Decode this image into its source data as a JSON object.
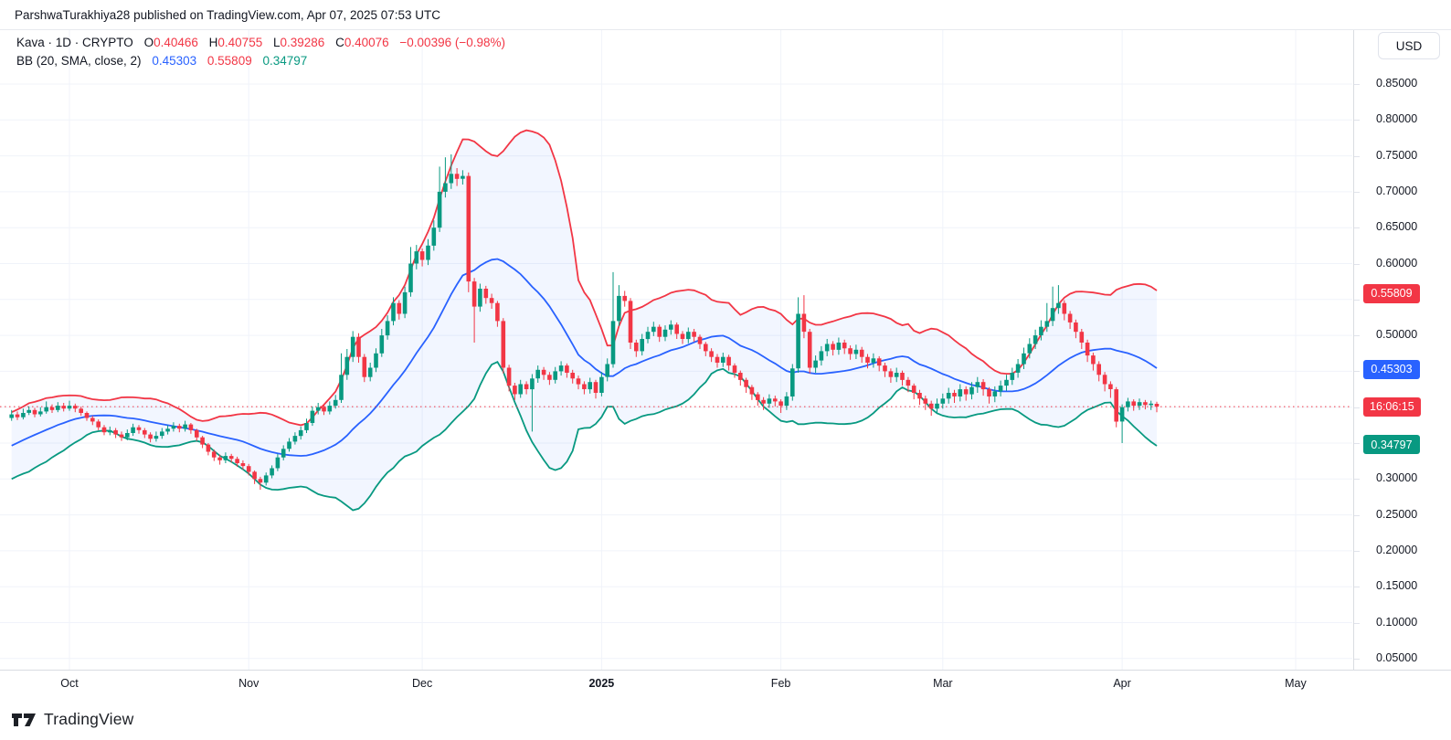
{
  "header": {
    "text": "ParshwaTurakhiya28 published on TradingView.com, Apr 07, 2025 07:53 UTC"
  },
  "legend": {
    "line1": {
      "title": "Kava · 1D · CRYPTO",
      "o_label": "O",
      "o": "0.40466",
      "h_label": "H",
      "h": "0.40755",
      "l_label": "L",
      "l": "0.39286",
      "c_label": "C",
      "c": "0.40076",
      "change": "−0.00396 (−0.98%)"
    },
    "line2": {
      "name": "BB (20, SMA, close, 2)",
      "basis": "0.45303",
      "upper": "0.55809",
      "lower": "0.34797"
    }
  },
  "price_scale": {
    "currency": "USD",
    "ticks": [
      0.85,
      0.8,
      0.75,
      0.7,
      0.65,
      0.6,
      0.55,
      0.5,
      0.45,
      0.4,
      0.35,
      0.3,
      0.25,
      0.2,
      0.15,
      0.1,
      0.05
    ],
    "hidden_ticks_by_badges": [
      0.55,
      0.45,
      0.4,
      0.35
    ],
    "labels": [
      {
        "text": "0.55809",
        "color": "#F23645",
        "price": 0.55809,
        "name": "bb-upper-label"
      },
      {
        "text": "0.45303",
        "color": "#2962FF",
        "price": 0.45303,
        "name": "bb-basis-label"
      },
      {
        "text": "16:06:15",
        "color": "#F23645",
        "price": 0.40076,
        "name": "countdown-label"
      },
      {
        "text": "0.34797",
        "color": "#089981",
        "price": 0.34797,
        "name": "bb-lower-label"
      }
    ],
    "current_price": 0.40076
  },
  "time_scale": {
    "ticks": [
      {
        "label": "Oct",
        "day": 10,
        "bold": false
      },
      {
        "label": "Nov",
        "day": 41,
        "bold": false
      },
      {
        "label": "Dec",
        "day": 71,
        "bold": false
      },
      {
        "label": "2025",
        "day": 102,
        "bold": true
      },
      {
        "label": "Feb",
        "day": 133,
        "bold": false
      },
      {
        "label": "Mar",
        "day": 161,
        "bold": false
      },
      {
        "label": "Apr",
        "day": 192,
        "bold": false
      },
      {
        "label": "May",
        "day": 222,
        "bold": false
      }
    ]
  },
  "footer": {
    "brand": "TradingView"
  },
  "colors": {
    "up": "#089981",
    "down": "#F23645",
    "bb_basis": "#2962FF",
    "bb_upper": "#F23645",
    "bb_lower": "#089981",
    "bb_fill": "rgba(41,98,255,0.06)",
    "current_line": "#F23645",
    "grid": "#f0f3fa"
  },
  "chart_data": {
    "type": "candlestick",
    "symbol": "Kava",
    "exchange": "CRYPTO",
    "interval": "1D",
    "unit": "USD",
    "indicator": "BB (20, SMA, close, 2)",
    "ylim": [
      0.0125,
      0.8625
    ],
    "axis_max": 0.85,
    "visible_start": 19,
    "candles": [
      [
        0.305,
        0.315,
        0.3,
        0.31
      ],
      [
        0.31,
        0.32,
        0.306,
        0.315
      ],
      [
        0.315,
        0.326,
        0.311,
        0.322
      ],
      [
        0.322,
        0.325,
        0.313,
        0.318
      ],
      [
        0.318,
        0.329,
        0.314,
        0.325
      ],
      [
        0.325,
        0.334,
        0.321,
        0.33
      ],
      [
        0.33,
        0.333,
        0.323,
        0.328
      ],
      [
        0.328,
        0.339,
        0.324,
        0.335
      ],
      [
        0.335,
        0.346,
        0.331,
        0.342
      ],
      [
        0.342,
        0.345,
        0.335,
        0.34
      ],
      [
        0.34,
        0.352,
        0.336,
        0.348
      ],
      [
        0.348,
        0.359,
        0.344,
        0.355
      ],
      [
        0.355,
        0.358,
        0.347,
        0.352
      ],
      [
        0.352,
        0.364,
        0.348,
        0.36
      ],
      [
        0.36,
        0.369,
        0.356,
        0.365
      ],
      [
        0.365,
        0.368,
        0.357,
        0.362
      ],
      [
        0.362,
        0.374,
        0.358,
        0.37
      ],
      [
        0.37,
        0.382,
        0.366,
        0.378
      ],
      [
        0.378,
        0.389,
        0.374,
        0.385
      ],
      [
        0.385,
        0.396,
        0.381,
        0.39
      ],
      [
        0.39,
        0.394,
        0.382,
        0.386
      ],
      [
        0.386,
        0.398,
        0.383,
        0.392
      ],
      [
        0.392,
        0.401,
        0.389,
        0.396
      ],
      [
        0.396,
        0.399,
        0.386,
        0.39
      ],
      [
        0.39,
        0.4,
        0.387,
        0.394
      ],
      [
        0.394,
        0.408,
        0.391,
        0.4
      ],
      [
        0.4,
        0.404,
        0.392,
        0.396
      ],
      [
        0.396,
        0.407,
        0.393,
        0.402
      ],
      [
        0.402,
        0.406,
        0.394,
        0.398
      ],
      [
        0.398,
        0.409,
        0.395,
        0.402
      ],
      [
        0.402,
        0.405,
        0.393,
        0.398
      ],
      [
        0.398,
        0.401,
        0.388,
        0.392
      ],
      [
        0.392,
        0.394,
        0.381,
        0.385
      ],
      [
        0.385,
        0.388,
        0.375,
        0.38
      ],
      [
        0.38,
        0.383,
        0.368,
        0.372
      ],
      [
        0.372,
        0.375,
        0.361,
        0.365
      ],
      [
        0.365,
        0.373,
        0.361,
        0.368
      ],
      [
        0.368,
        0.371,
        0.357,
        0.362
      ],
      [
        0.362,
        0.366,
        0.353,
        0.358
      ],
      [
        0.358,
        0.369,
        0.354,
        0.364
      ],
      [
        0.364,
        0.377,
        0.36,
        0.372
      ],
      [
        0.372,
        0.375,
        0.363,
        0.368
      ],
      [
        0.368,
        0.371,
        0.357,
        0.362
      ],
      [
        0.362,
        0.365,
        0.351,
        0.356
      ],
      [
        0.356,
        0.366,
        0.352,
        0.36
      ],
      [
        0.36,
        0.371,
        0.356,
        0.366
      ],
      [
        0.366,
        0.375,
        0.362,
        0.37
      ],
      [
        0.37,
        0.379,
        0.366,
        0.374
      ],
      [
        0.374,
        0.377,
        0.365,
        0.37
      ],
      [
        0.37,
        0.381,
        0.366,
        0.376
      ],
      [
        0.376,
        0.378,
        0.363,
        0.368
      ],
      [
        0.368,
        0.37,
        0.353,
        0.358
      ],
      [
        0.358,
        0.36,
        0.343,
        0.348
      ],
      [
        0.348,
        0.35,
        0.333,
        0.338
      ],
      [
        0.338,
        0.341,
        0.325,
        0.33
      ],
      [
        0.33,
        0.334,
        0.32,
        0.326
      ],
      [
        0.326,
        0.337,
        0.322,
        0.332
      ],
      [
        0.332,
        0.335,
        0.323,
        0.328
      ],
      [
        0.328,
        0.331,
        0.317,
        0.322
      ],
      [
        0.322,
        0.326,
        0.313,
        0.318
      ],
      [
        0.318,
        0.321,
        0.305,
        0.31
      ],
      [
        0.31,
        0.312,
        0.293,
        0.3
      ],
      [
        0.3,
        0.303,
        0.285,
        0.295
      ],
      [
        0.295,
        0.309,
        0.291,
        0.305
      ],
      [
        0.305,
        0.319,
        0.301,
        0.315
      ],
      [
        0.315,
        0.335,
        0.311,
        0.33
      ],
      [
        0.33,
        0.347,
        0.326,
        0.342
      ],
      [
        0.342,
        0.357,
        0.338,
        0.352
      ],
      [
        0.352,
        0.365,
        0.348,
        0.36
      ],
      [
        0.36,
        0.373,
        0.355,
        0.368
      ],
      [
        0.368,
        0.384,
        0.364,
        0.378
      ],
      [
        0.378,
        0.401,
        0.374,
        0.395
      ],
      [
        0.395,
        0.406,
        0.39,
        0.4
      ],
      [
        0.4,
        0.403,
        0.389,
        0.394
      ],
      [
        0.394,
        0.408,
        0.39,
        0.402
      ],
      [
        0.402,
        0.417,
        0.398,
        0.41
      ],
      [
        0.41,
        0.475,
        0.406,
        0.445
      ],
      [
        0.445,
        0.481,
        0.438,
        0.47
      ],
      [
        0.47,
        0.506,
        0.463,
        0.498
      ],
      [
        0.498,
        0.503,
        0.462,
        0.47
      ],
      [
        0.47,
        0.474,
        0.435,
        0.442
      ],
      [
        0.442,
        0.462,
        0.436,
        0.455
      ],
      [
        0.455,
        0.482,
        0.449,
        0.475
      ],
      [
        0.475,
        0.509,
        0.47,
        0.5
      ],
      [
        0.5,
        0.528,
        0.494,
        0.52
      ],
      [
        0.52,
        0.553,
        0.514,
        0.545
      ],
      [
        0.545,
        0.549,
        0.522,
        0.53
      ],
      [
        0.53,
        0.568,
        0.524,
        0.56
      ],
      [
        0.56,
        0.623,
        0.554,
        0.6
      ],
      [
        0.6,
        0.626,
        0.592,
        0.617
      ],
      [
        0.617,
        0.621,
        0.596,
        0.605
      ],
      [
        0.605,
        0.634,
        0.598,
        0.625
      ],
      [
        0.625,
        0.66,
        0.618,
        0.65
      ],
      [
        0.65,
        0.735,
        0.644,
        0.7
      ],
      [
        0.7,
        0.748,
        0.692,
        0.712
      ],
      [
        0.712,
        0.752,
        0.704,
        0.725
      ],
      [
        0.725,
        0.733,
        0.708,
        0.718
      ],
      [
        0.718,
        0.73,
        0.71,
        0.722
      ],
      [
        0.722,
        0.727,
        0.56,
        0.575
      ],
      [
        0.575,
        0.58,
        0.49,
        0.54
      ],
      [
        0.54,
        0.572,
        0.533,
        0.565
      ],
      [
        0.565,
        0.569,
        0.544,
        0.552
      ],
      [
        0.552,
        0.558,
        0.537,
        0.545
      ],
      [
        0.545,
        0.548,
        0.512,
        0.52
      ],
      [
        0.52,
        0.524,
        0.447,
        0.455
      ],
      [
        0.455,
        0.459,
        0.422,
        0.43
      ],
      [
        0.43,
        0.434,
        0.41,
        0.418
      ],
      [
        0.418,
        0.438,
        0.413,
        0.432
      ],
      [
        0.432,
        0.436,
        0.418,
        0.425
      ],
      [
        0.425,
        0.446,
        0.366,
        0.44
      ],
      [
        0.44,
        0.458,
        0.434,
        0.452
      ],
      [
        0.452,
        0.456,
        0.438,
        0.445
      ],
      [
        0.445,
        0.449,
        0.431,
        0.438
      ],
      [
        0.438,
        0.456,
        0.433,
        0.45
      ],
      [
        0.45,
        0.464,
        0.444,
        0.458
      ],
      [
        0.458,
        0.461,
        0.441,
        0.448
      ],
      [
        0.448,
        0.452,
        0.433,
        0.44
      ],
      [
        0.44,
        0.444,
        0.425,
        0.432
      ],
      [
        0.432,
        0.436,
        0.418,
        0.425
      ],
      [
        0.425,
        0.441,
        0.419,
        0.435
      ],
      [
        0.435,
        0.438,
        0.412,
        0.42
      ],
      [
        0.42,
        0.449,
        0.415,
        0.442
      ],
      [
        0.442,
        0.468,
        0.436,
        0.46
      ],
      [
        0.46,
        0.588,
        0.455,
        0.52
      ],
      [
        0.52,
        0.57,
        0.513,
        0.555
      ],
      [
        0.555,
        0.562,
        0.54,
        0.548
      ],
      [
        0.548,
        0.552,
        0.481,
        0.49
      ],
      [
        0.49,
        0.494,
        0.47,
        0.478
      ],
      [
        0.478,
        0.502,
        0.472,
        0.495
      ],
      [
        0.495,
        0.512,
        0.489,
        0.505
      ],
      [
        0.505,
        0.519,
        0.499,
        0.512
      ],
      [
        0.512,
        0.515,
        0.491,
        0.498
      ],
      [
        0.498,
        0.514,
        0.492,
        0.508
      ],
      [
        0.508,
        0.521,
        0.501,
        0.515
      ],
      [
        0.515,
        0.518,
        0.495,
        0.502
      ],
      [
        0.502,
        0.506,
        0.488,
        0.495
      ],
      [
        0.495,
        0.511,
        0.489,
        0.505
      ],
      [
        0.505,
        0.509,
        0.491,
        0.498
      ],
      [
        0.498,
        0.501,
        0.481,
        0.488
      ],
      [
        0.488,
        0.491,
        0.471,
        0.478
      ],
      [
        0.478,
        0.482,
        0.463,
        0.47
      ],
      [
        0.47,
        0.474,
        0.455,
        0.462
      ],
      [
        0.462,
        0.476,
        0.456,
        0.47
      ],
      [
        0.47,
        0.473,
        0.451,
        0.458
      ],
      [
        0.458,
        0.461,
        0.441,
        0.448
      ],
      [
        0.448,
        0.451,
        0.43,
        0.438
      ],
      [
        0.438,
        0.441,
        0.42,
        0.428
      ],
      [
        0.428,
        0.431,
        0.41,
        0.418
      ],
      [
        0.418,
        0.421,
        0.402,
        0.41
      ],
      [
        0.41,
        0.414,
        0.396,
        0.405
      ],
      [
        0.405,
        0.418,
        0.399,
        0.412
      ],
      [
        0.412,
        0.416,
        0.401,
        0.408
      ],
      [
        0.408,
        0.411,
        0.392,
        0.402
      ],
      [
        0.402,
        0.421,
        0.396,
        0.415
      ],
      [
        0.415,
        0.46,
        0.409,
        0.454
      ],
      [
        0.454,
        0.553,
        0.448,
        0.53
      ],
      [
        0.53,
        0.556,
        0.496,
        0.505
      ],
      [
        0.505,
        0.509,
        0.447,
        0.455
      ],
      [
        0.455,
        0.472,
        0.448,
        0.465
      ],
      [
        0.465,
        0.485,
        0.458,
        0.478
      ],
      [
        0.478,
        0.495,
        0.471,
        0.488
      ],
      [
        0.488,
        0.492,
        0.472,
        0.48
      ],
      [
        0.48,
        0.497,
        0.473,
        0.49
      ],
      [
        0.49,
        0.494,
        0.474,
        0.482
      ],
      [
        0.482,
        0.486,
        0.466,
        0.474
      ],
      [
        0.474,
        0.487,
        0.467,
        0.48
      ],
      [
        0.48,
        0.484,
        0.462,
        0.47
      ],
      [
        0.47,
        0.474,
        0.454,
        0.462
      ],
      [
        0.462,
        0.475,
        0.455,
        0.468
      ],
      [
        0.468,
        0.471,
        0.45,
        0.458
      ],
      [
        0.458,
        0.462,
        0.442,
        0.45
      ],
      [
        0.45,
        0.454,
        0.434,
        0.442
      ],
      [
        0.442,
        0.455,
        0.435,
        0.448
      ],
      [
        0.448,
        0.451,
        0.43,
        0.438
      ],
      [
        0.438,
        0.442,
        0.421,
        0.43
      ],
      [
        0.43,
        0.433,
        0.411,
        0.42
      ],
      [
        0.42,
        0.424,
        0.403,
        0.412
      ],
      [
        0.412,
        0.416,
        0.396,
        0.405
      ],
      [
        0.405,
        0.409,
        0.388,
        0.398
      ],
      [
        0.398,
        0.412,
        0.391,
        0.405
      ],
      [
        0.405,
        0.419,
        0.398,
        0.412
      ],
      [
        0.412,
        0.427,
        0.405,
        0.42
      ],
      [
        0.42,
        0.424,
        0.406,
        0.415
      ],
      [
        0.415,
        0.432,
        0.408,
        0.425
      ],
      [
        0.425,
        0.429,
        0.409,
        0.418
      ],
      [
        0.418,
        0.435,
        0.411,
        0.428
      ],
      [
        0.428,
        0.442,
        0.42,
        0.435
      ],
      [
        0.435,
        0.439,
        0.416,
        0.425
      ],
      [
        0.425,
        0.428,
        0.405,
        0.415
      ],
      [
        0.415,
        0.429,
        0.407,
        0.422
      ],
      [
        0.422,
        0.437,
        0.415,
        0.43
      ],
      [
        0.43,
        0.445,
        0.423,
        0.438
      ],
      [
        0.438,
        0.455,
        0.431,
        0.448
      ],
      [
        0.448,
        0.467,
        0.441,
        0.46
      ],
      [
        0.46,
        0.483,
        0.453,
        0.475
      ],
      [
        0.475,
        0.496,
        0.468,
        0.488
      ],
      [
        0.488,
        0.508,
        0.481,
        0.5
      ],
      [
        0.5,
        0.521,
        0.493,
        0.512
      ],
      [
        0.512,
        0.545,
        0.505,
        0.52
      ],
      [
        0.52,
        0.568,
        0.513,
        0.538
      ],
      [
        0.538,
        0.57,
        0.53,
        0.545
      ],
      [
        0.545,
        0.549,
        0.521,
        0.53
      ],
      [
        0.53,
        0.534,
        0.509,
        0.518
      ],
      [
        0.518,
        0.522,
        0.496,
        0.505
      ],
      [
        0.505,
        0.509,
        0.481,
        0.49
      ],
      [
        0.49,
        0.494,
        0.463,
        0.472
      ],
      [
        0.472,
        0.476,
        0.451,
        0.46
      ],
      [
        0.46,
        0.464,
        0.436,
        0.445
      ],
      [
        0.445,
        0.449,
        0.422,
        0.432
      ],
      [
        0.432,
        0.436,
        0.413,
        0.425
      ],
      [
        0.425,
        0.428,
        0.372,
        0.38
      ],
      [
        0.38,
        0.404,
        0.35,
        0.4
      ],
      [
        0.4,
        0.413,
        0.394,
        0.408
      ],
      [
        0.408,
        0.411,
        0.395,
        0.402
      ],
      [
        0.402,
        0.412,
        0.396,
        0.407
      ],
      [
        0.407,
        0.41,
        0.397,
        0.403
      ],
      [
        0.403,
        0.409,
        0.396,
        0.405
      ],
      [
        0.40466,
        0.40755,
        0.39286,
        0.40076
      ]
    ]
  }
}
